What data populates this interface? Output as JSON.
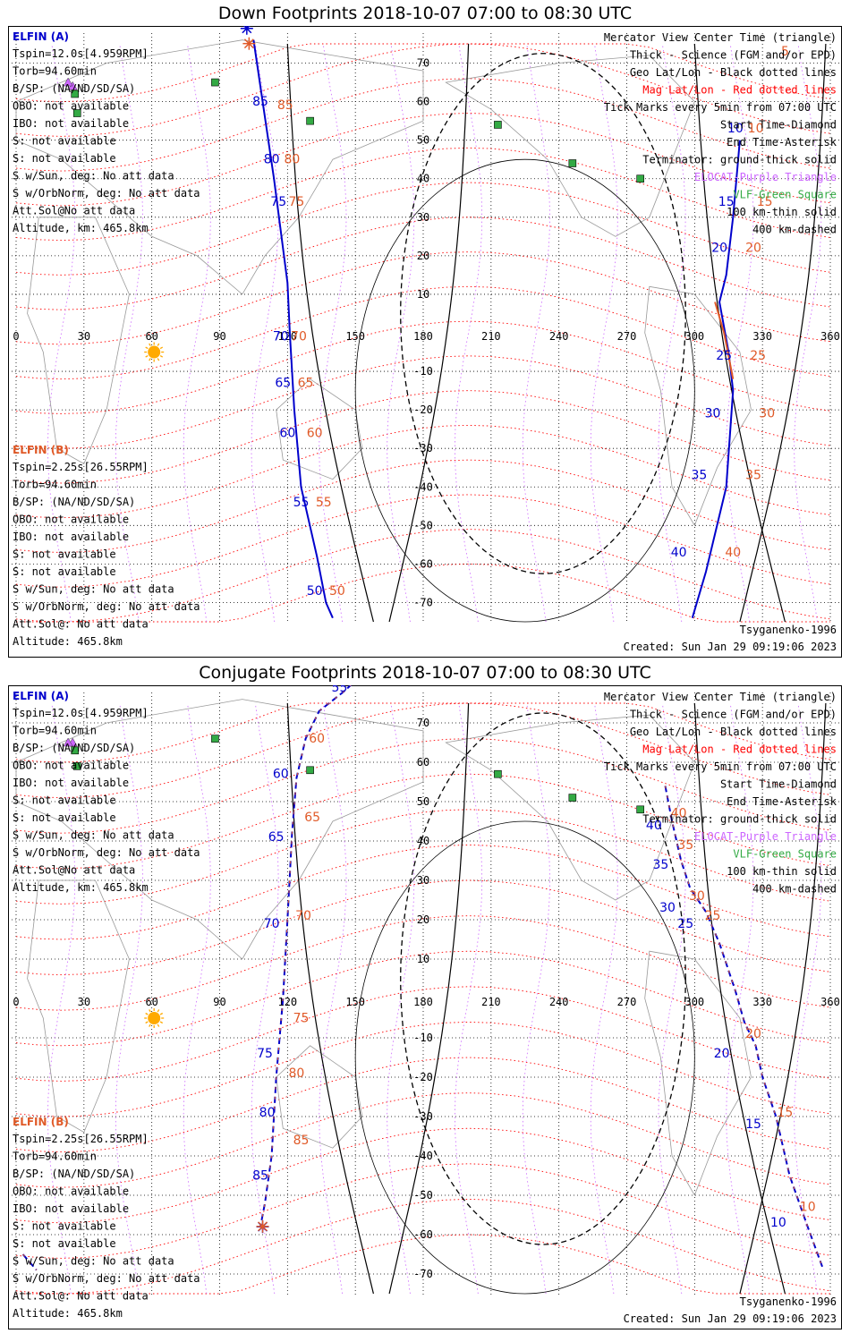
{
  "colors": {
    "elfin_a": "#0000cc",
    "elfin_b": "#e05a28",
    "terminator": "#000000",
    "geo_grid": "#000000",
    "mag_grid": "#ff0000",
    "elocat": "#cc66ff",
    "vlf": "#33aa44",
    "coast": "#999999",
    "sun": "#ffaa00"
  },
  "chart_data": [
    {
      "type": "line",
      "panel": "down",
      "title": "Down Footprints 2018-10-07 07:00 to 08:30 UTC",
      "x_ticks": [
        "0",
        "30",
        "60",
        "90",
        "120",
        "150",
        "180",
        "210",
        "240",
        "270",
        "300",
        "330",
        "360"
      ],
      "y_ticks": [
        "70",
        "60",
        "50",
        "40",
        "30",
        "20",
        "10",
        "-10",
        "-20",
        "-30",
        "-40",
        "-50",
        "-60",
        "-70"
      ],
      "xlim": [
        0,
        360
      ],
      "ylim": [
        -75,
        75
      ],
      "legend_right": [
        "Mercator View Center Time (triangle)",
        "Thick - Science (FGM and/or EPD)",
        "Geo Lat/Lon - Black dotted lines",
        "Mag Lat/Lon - Red dotted lines",
        "Tick Marks every 5min from 07:00 UTC",
        "Start Time-Diamond",
        "End Time-Asterisk",
        "Terminator: ground-thick solid",
        "ELOCAT-Purple Triangle",
        "VLF-Green Square",
        "100 km-thin solid",
        "400 km-dashed"
      ],
      "info_a": {
        "name": "ELFIN (A)",
        "lines": [
          "Tspin=12.0s[4.959RPM]",
          "Torb=94.60min",
          "B/SP: (NA/ND/SD/SA)",
          "OBO: not available",
          "IBO: not available",
          "S: not available",
          "S: not available",
          "S w/Sun, deg: No att data",
          "S w/OrbNorm, deg: No att data",
          "Att.Sol@No att data",
          "Altitude, km: 465.8km"
        ]
      },
      "info_b": {
        "name": "ELFIN (B)",
        "lines": [
          "Tspin=2.25s[26.55RPM]",
          "Torb=94.60min",
          "B/SP: (NA/ND/SD/SA)",
          "OBO: not available",
          "IBO: not available",
          "S: not available",
          "S: not available",
          "S w/Sun, deg: No att data",
          "S w/OrbNorm, deg: No att data",
          "Att.Sol@: No att data",
          "Altitude: 465.8km"
        ]
      },
      "model": "Tsyganenko-1996",
      "created": "Created: Sun Jan 29 09:19:06 2023",
      "series": [
        {
          "name": "ELFIN (A)",
          "pts": [
            [
              105,
              76
            ],
            [
              114,
              40
            ],
            [
              120,
              13
            ],
            [
              121,
              0
            ],
            [
              123,
              -20
            ],
            [
              126,
              -40
            ],
            [
              133,
              -58
            ],
            [
              137,
              -70
            ],
            [
              140,
              -74
            ]
          ]
        },
        {
          "name": "ELFIN (A)",
          "pts": [
            [
              320,
              50
            ],
            [
              317,
              30
            ],
            [
              314,
              15
            ],
            [
              311,
              8
            ],
            [
              315,
              -5
            ],
            [
              317,
              -15
            ],
            [
              314,
              -40
            ],
            [
              305,
              -62
            ],
            [
              299,
              -74
            ]
          ]
        },
        {
          "name": "ELFIN (B)",
          "pts": [
            [
              309,
              8
            ],
            [
              313,
              0
            ],
            [
              317,
              -12
            ]
          ]
        }
      ],
      "labels_a": [
        [
          "85",
          108,
          59
        ],
        [
          "80",
          113,
          44
        ],
        [
          "75",
          116,
          33
        ],
        [
          "70",
          117,
          -2
        ],
        [
          "65",
          118,
          -14
        ],
        [
          "60",
          120,
          -27
        ],
        [
          "55",
          126,
          -45
        ],
        [
          "50",
          132,
          -68
        ],
        [
          "10",
          318,
          52
        ],
        [
          "15",
          314,
          33
        ],
        [
          "20",
          311,
          21
        ],
        [
          "25",
          313,
          -7
        ],
        [
          "30",
          308,
          -22
        ],
        [
          "35",
          302,
          -38
        ],
        [
          "40",
          293,
          -58
        ]
      ],
      "labels_b": [
        [
          "85",
          119,
          58
        ],
        [
          "80",
          122,
          44
        ],
        [
          "75",
          124,
          33
        ],
        [
          "70",
          125,
          -2
        ],
        [
          "65",
          128,
          -14
        ],
        [
          "60",
          132,
          -27
        ],
        [
          "55",
          136,
          -45
        ],
        [
          "50",
          142,
          -68
        ],
        [
          "5",
          340,
          72
        ],
        [
          "10",
          327,
          52
        ],
        [
          "15",
          331,
          33
        ],
        [
          "20",
          326,
          21
        ],
        [
          "25",
          328,
          -7
        ],
        [
          "30",
          332,
          -22
        ],
        [
          "35",
          326,
          -38
        ],
        [
          "40",
          317,
          -58
        ]
      ],
      "markers": {
        "asterisk_a": [
          102,
          79
        ],
        "asterisk_b": [
          103,
          76
        ],
        "sun": [
          61,
          -5
        ],
        "elocat": [
          [
            25,
            64
          ],
          [
            23,
            65
          ]
        ],
        "vlf": [
          [
            88,
            65
          ],
          [
            26,
            62
          ],
          [
            27,
            57
          ],
          [
            130,
            55
          ],
          [
            213,
            54
          ],
          [
            246,
            44
          ],
          [
            276,
            40
          ]
        ]
      }
    },
    {
      "type": "line",
      "panel": "conjugate",
      "title": "Conjugate Footprints 2018-10-07 07:00 to 08:30 UTC",
      "x_ticks": [
        "0",
        "30",
        "60",
        "90",
        "120",
        "150",
        "180",
        "210",
        "240",
        "270",
        "300",
        "330",
        "360"
      ],
      "y_ticks": [
        "70",
        "60",
        "50",
        "40",
        "30",
        "20",
        "10",
        "-10",
        "-20",
        "-30",
        "-40",
        "-50",
        "-60",
        "-70"
      ],
      "xlim": [
        0,
        360
      ],
      "ylim": [
        -75,
        75
      ],
      "legend_right": [
        "Mercator View Center Time (triangle)",
        "Thick - Science (FGM and/or EPD)",
        "Geo Lat/Lon - Black dotted lines",
        "Mag Lat/Lon - Red dotted lines",
        "Tick Marks every 5min from 07:00 UTC",
        "Start Time-Diamond",
        "End Time-Asterisk",
        "Terminator: ground-thick solid",
        "ELOCAT-Purple Triangle",
        "VLF-Green Square",
        "100 km-thin solid",
        "400 km-dashed"
      ],
      "info_a": {
        "name": "ELFIN (A)",
        "lines": [
          "Tspin=12.0s[4.959RPM]",
          "Torb=94.60min",
          "B/SP: (NA/ND/SD/SA)",
          "OBO: not available",
          "IBO: not available",
          "S: not available",
          "S: not available",
          "S w/Sun, deg: No att data",
          "S w/OrbNorm, deg: No att data",
          "Att.Sol@No att data",
          "Altitude, km: 465.8km"
        ]
      },
      "info_b": {
        "name": "ELFIN (B)",
        "lines": [
          "Tspin=2.25s[26.55RPM]",
          "Torb=94.60min",
          "B/SP: (NA/ND/SD/SA)",
          "OBO: not available",
          "IBO: not available",
          "S: not available",
          "S: not available",
          "S w/Sun, deg: No att data",
          "S w/OrbNorm, deg: No att data",
          "Att.Sol@: No att data",
          "Altitude: 465.8km"
        ]
      },
      "model": "Tsyganenko-1996",
      "created": "Created: Sun Jan 29 09:19:06 2023",
      "series": [
        {
          "name": "ELFIN (A)",
          "pts": [
            [
              158,
              85
            ],
            [
              145,
              78
            ],
            [
              134,
              73
            ],
            [
              128,
              66
            ],
            [
              124,
              56
            ],
            [
              122,
              42
            ],
            [
              120,
              20
            ],
            [
              118,
              0
            ],
            [
              115,
              -20
            ],
            [
              113,
              -40
            ],
            [
              110,
              -52
            ],
            [
              108,
              -58
            ]
          ]
        },
        {
          "name": "ELFIN (A)",
          "pts": [
            [
              287,
              54
            ],
            [
              290,
              45
            ],
            [
              294,
              35
            ],
            [
              298,
              28
            ],
            [
              305,
              22
            ],
            [
              311,
              14
            ],
            [
              318,
              2
            ],
            [
              322,
              -6
            ],
            [
              327,
              -12
            ],
            [
              330,
              -20
            ],
            [
              336,
              -30
            ],
            [
              342,
              -45
            ],
            [
              350,
              -58
            ],
            [
              357,
              -69
            ]
          ]
        },
        {
          "name": "ELFIN (A)",
          "pts": [
            [
              3,
              -65
            ],
            [
              9,
              -69
            ]
          ]
        }
      ],
      "labels_a": [
        [
          "55",
          143,
          78
        ],
        [
          "60",
          117,
          56
        ],
        [
          "65",
          115,
          40
        ],
        [
          "70",
          113,
          18
        ],
        [
          "75",
          110,
          -15
        ],
        [
          "80",
          111,
          -30
        ],
        [
          "85",
          108,
          -46
        ],
        [
          "40",
          282,
          43
        ],
        [
          "35",
          285,
          33
        ],
        [
          "30",
          288,
          22
        ],
        [
          "25",
          296,
          18
        ],
        [
          "20",
          312,
          -15
        ],
        [
          "15",
          326,
          -33
        ],
        [
          "10",
          337,
          -58
        ]
      ],
      "labels_b": [
        [
          "60",
          133,
          65
        ],
        [
          "65",
          131,
          45
        ],
        [
          "70",
          127,
          20
        ],
        [
          "75",
          126,
          -6
        ],
        [
          "80",
          124,
          -20
        ],
        [
          "85",
          126,
          -37
        ],
        [
          "40",
          293,
          46
        ],
        [
          "35",
          296,
          38
        ],
        [
          "30",
          301,
          25
        ],
        [
          "25",
          308,
          20
        ],
        [
          "20",
          326,
          -10
        ],
        [
          "15",
          340,
          -30
        ],
        [
          "10",
          350,
          -54
        ]
      ],
      "markers": {
        "asterisk_a": [
          109,
          -58
        ],
        "asterisk_b": [
          109,
          -57
        ],
        "sun": [
          61,
          -5
        ],
        "elocat": [
          [
            25,
            65
          ],
          [
            23,
            65
          ]
        ],
        "vlf": [
          [
            88,
            66
          ],
          [
            26,
            63
          ],
          [
            27,
            59
          ],
          [
            130,
            58
          ],
          [
            213,
            57
          ],
          [
            246,
            51
          ],
          [
            276,
            48
          ]
        ]
      }
    }
  ]
}
